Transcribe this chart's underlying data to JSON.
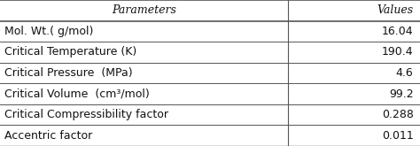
{
  "headers": [
    "Parameters",
    "Values"
  ],
  "rows": [
    [
      "Mol. Wt.( g/mol)",
      "16.04"
    ],
    [
      "Critical Temperature (K)",
      "190.4"
    ],
    [
      "Critical Pressure  (MPa)",
      "4.6"
    ],
    [
      "Critical Volume  (cm³/mol)",
      "99.2"
    ],
    [
      "Critical Compressibility factor",
      "0.288"
    ],
    [
      "Accentric factor",
      "0.011"
    ]
  ],
  "bg_color": "#ffffff",
  "header_bg": "#ffffff",
  "line_color": "#555555",
  "text_color": "#111111",
  "font_size": 9.0,
  "col_split": 0.685,
  "fig_width": 4.74,
  "fig_height": 1.65,
  "dpi": 100
}
